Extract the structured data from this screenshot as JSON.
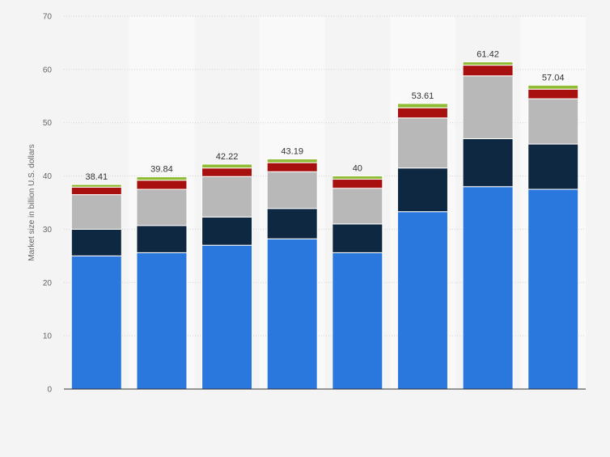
{
  "chart_data": {
    "type": "bar",
    "stacked": true,
    "title": "",
    "xlabel": "",
    "ylabel": "Market size in billion U.S. dollars",
    "ylim": [
      0,
      70
    ],
    "yticks": [
      0,
      10,
      20,
      30,
      40,
      50,
      60,
      70
    ],
    "grid": true,
    "legend": "none",
    "categories": [
      "",
      "",
      "",
      "",
      "",
      "",
      "",
      ""
    ],
    "series": [
      {
        "color": "#2a78de",
        "values": [
          25.0,
          25.6,
          27.0,
          28.2,
          25.6,
          33.3,
          38.0,
          37.5
        ]
      },
      {
        "color": "#0f2841",
        "values": [
          5.0,
          5.1,
          5.3,
          5.7,
          5.4,
          8.2,
          9.0,
          8.5
        ]
      },
      {
        "color": "#b8b8b8",
        "values": [
          6.5,
          6.8,
          7.6,
          6.9,
          6.7,
          9.4,
          11.8,
          8.5
        ]
      },
      {
        "color": "#a80f0f",
        "values": [
          1.4,
          1.7,
          1.6,
          1.7,
          1.7,
          1.9,
          2.0,
          1.8
        ]
      },
      {
        "color": "#8fbc34",
        "values": [
          0.51,
          0.64,
          0.72,
          0.69,
          0.6,
          0.81,
          0.62,
          0.74
        ]
      }
    ],
    "totals": [
      "38.41",
      "39.84",
      "42.22",
      "43.19",
      "40",
      "53.61",
      "61.42",
      "57.04"
    ]
  }
}
